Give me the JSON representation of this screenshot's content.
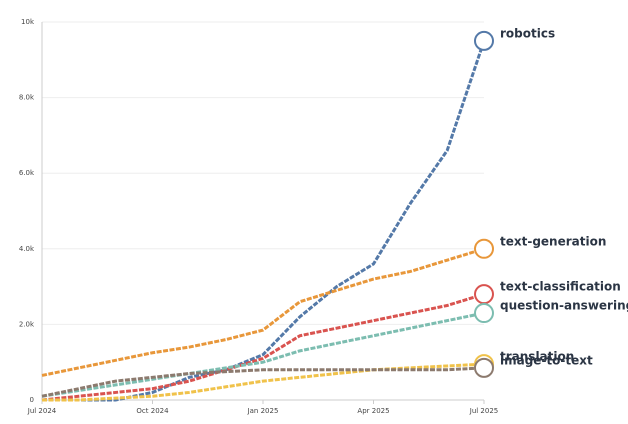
{
  "chart_data": {
    "type": "line",
    "x": [
      0,
      1,
      2,
      3,
      4,
      5,
      6,
      7,
      8,
      9,
      10,
      11,
      12
    ],
    "xlim": [
      0,
      12
    ],
    "xticks": [
      {
        "value": 0,
        "label": "Jul 2024"
      },
      {
        "value": 3,
        "label": "Oct 2024"
      },
      {
        "value": 6,
        "label": "Jan 2025"
      },
      {
        "value": 9,
        "label": "Apr 2025"
      },
      {
        "value": 12,
        "label": "Jul 2025"
      }
    ],
    "ylim": [
      0,
      10000
    ],
    "yticks": [
      0,
      {
        "value": 2000,
        "label": "2.0k"
      },
      {
        "value": 4000,
        "label": "4.0k"
      },
      {
        "value": 6000,
        "label": "6.0k"
      },
      {
        "value": 8000,
        "label": "8.0k"
      },
      {
        "value": 10000,
        "label": "10k"
      }
    ],
    "grid": true,
    "series": [
      {
        "name": "robotics",
        "color": "#5479a8",
        "values": [
          0,
          0,
          0,
          200,
          600,
          800,
          1200,
          2200,
          3000,
          3600,
          5200,
          6600,
          9500
        ]
      },
      {
        "name": "text-generation",
        "color": "#e8973a",
        "values": [
          650,
          850,
          1050,
          1250,
          1400,
          1600,
          1850,
          2600,
          2900,
          3200,
          3400,
          3700,
          4000
        ]
      },
      {
        "name": "text-classification",
        "color": "#d9534f",
        "values": [
          0,
          100,
          200,
          300,
          500,
          800,
          1100,
          1700,
          1900,
          2100,
          2300,
          2500,
          2800
        ]
      },
      {
        "name": "question-answering",
        "color": "#7cbdb0",
        "values": [
          100,
          250,
          400,
          550,
          700,
          850,
          1000,
          1300,
          1500,
          1700,
          1900,
          2100,
          2300
        ]
      },
      {
        "name": "translation",
        "color": "#f0c24a",
        "values": [
          0,
          0,
          50,
          100,
          200,
          350,
          500,
          600,
          700,
          800,
          850,
          900,
          950
        ]
      },
      {
        "name": "image-to-text",
        "color": "#8c7a6e",
        "values": [
          100,
          300,
          500,
          600,
          700,
          750,
          800,
          800,
          800,
          800,
          800,
          800,
          850
        ]
      }
    ]
  }
}
